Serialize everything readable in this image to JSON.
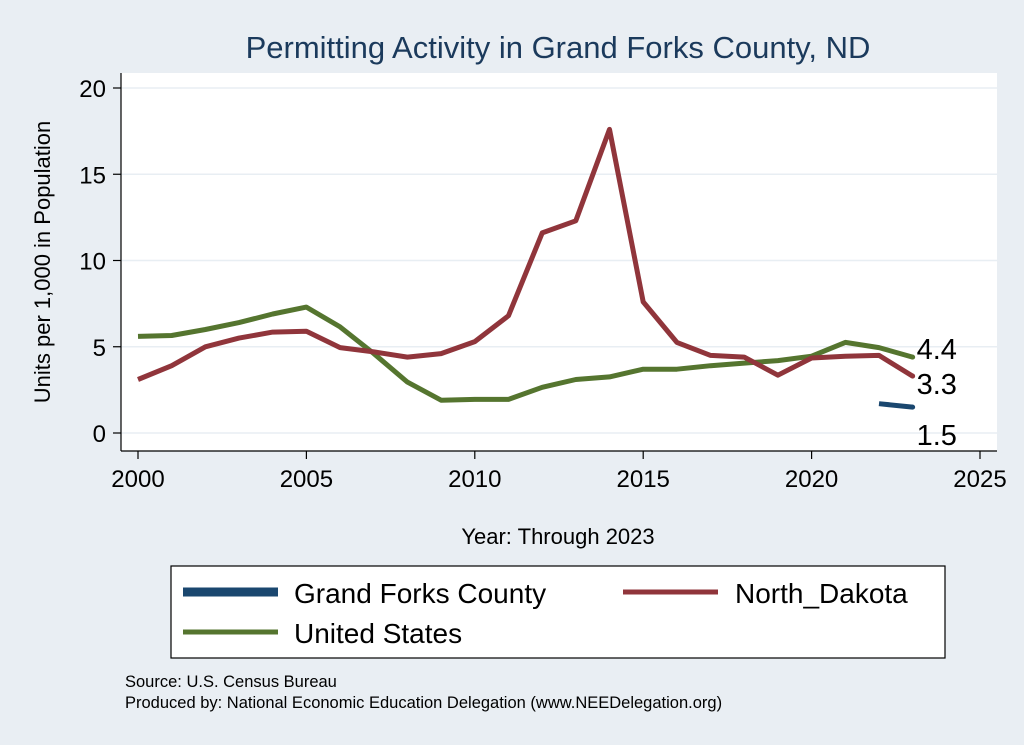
{
  "chart_data": {
    "type": "line",
    "title": "Permitting Activity in Grand Forks County, ND",
    "xlabel": "Year: Through 2023",
    "ylabel": "Units per 1,000 in Population",
    "xlim": [
      2000,
      2025
    ],
    "ylim": [
      0,
      20
    ],
    "xticks": [
      2000,
      2005,
      2010,
      2015,
      2020,
      2025
    ],
    "yticks": [
      0,
      5,
      10,
      15,
      20
    ],
    "grid": true,
    "legend_position": "bottom",
    "series": [
      {
        "name": "Grand Forks County",
        "color": "#1a476f",
        "x": [
          2022,
          2023
        ],
        "y": [
          1.7,
          1.5
        ],
        "end_label": "1.5"
      },
      {
        "name": "North_Dakota",
        "color": "#90353b",
        "x": [
          2000,
          2001,
          2002,
          2003,
          2004,
          2005,
          2006,
          2007,
          2008,
          2009,
          2010,
          2011,
          2012,
          2013,
          2014,
          2015,
          2016,
          2017,
          2018,
          2019,
          2020,
          2021,
          2022,
          2023
        ],
        "y": [
          3.1,
          3.9,
          5.0,
          5.5,
          5.85,
          5.9,
          4.95,
          4.7,
          4.4,
          4.6,
          5.3,
          6.8,
          11.6,
          12.3,
          17.6,
          7.6,
          5.25,
          4.5,
          4.4,
          3.35,
          4.35,
          4.45,
          4.5,
          3.3
        ],
        "end_label": "3.3"
      },
      {
        "name": "United States",
        "color": "#55752f",
        "x": [
          2000,
          2001,
          2002,
          2003,
          2004,
          2005,
          2006,
          2007,
          2008,
          2009,
          2010,
          2011,
          2012,
          2013,
          2014,
          2015,
          2016,
          2017,
          2018,
          2019,
          2020,
          2021,
          2022,
          2023
        ],
        "y": [
          5.6,
          5.65,
          6.0,
          6.4,
          6.9,
          7.3,
          6.15,
          4.6,
          2.95,
          1.9,
          1.95,
          1.95,
          2.65,
          3.1,
          3.25,
          3.7,
          3.7,
          3.9,
          4.05,
          4.2,
          4.45,
          5.25,
          4.95,
          4.4
        ],
        "end_label": "4.4"
      }
    ],
    "notes": [
      "Source: U.S. Census Bureau",
      "Produced by: National Economic Education Delegation (www.NEEDelegation.org)"
    ]
  }
}
